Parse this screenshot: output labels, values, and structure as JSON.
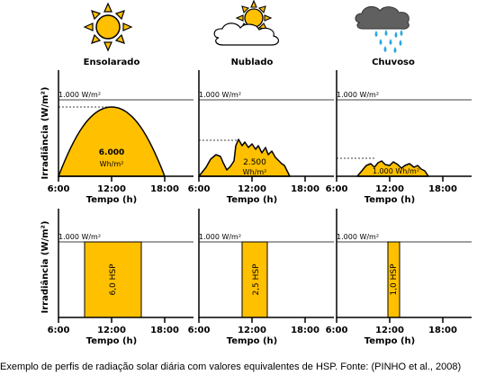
{
  "panels": [
    {
      "id": "sunny",
      "title": "Ensolarado",
      "icon": "sun-icon",
      "profile_total": "6.000",
      "profile_unit": "Wh/m²",
      "hsp_label": "6,0 HSP",
      "hsp_hours": 6.0
    },
    {
      "id": "cloudy",
      "title": "Nublado",
      "icon": "sun-behind-cloud-icon",
      "profile_total": "2.500",
      "profile_unit": "Wh/m²",
      "hsp_label": "2,5 HSP",
      "hsp_hours": 2.5
    },
    {
      "id": "rainy",
      "title": "Chuvoso",
      "icon": "rain-cloud-icon",
      "profile_total": "1.000",
      "profile_unit": "Wh/m²",
      "hsp_label": "1,0 HSP",
      "hsp_hours": 1.0
    }
  ],
  "axes": {
    "ylabel": "Irradiância (W/m²)",
    "xlabel": "Tempo (h)",
    "xticks": [
      "6:00",
      "12:00",
      "18:00"
    ],
    "reference_label": "1.000 W/m²"
  },
  "colors": {
    "fill": "#ffc000",
    "stroke": "#000000",
    "sun": "#ffc000"
  },
  "caption": "Exemplo de perfis de radiação solar diária com valores equivalentes de HSP. Fonte: (PINHO et al., 2008)"
}
